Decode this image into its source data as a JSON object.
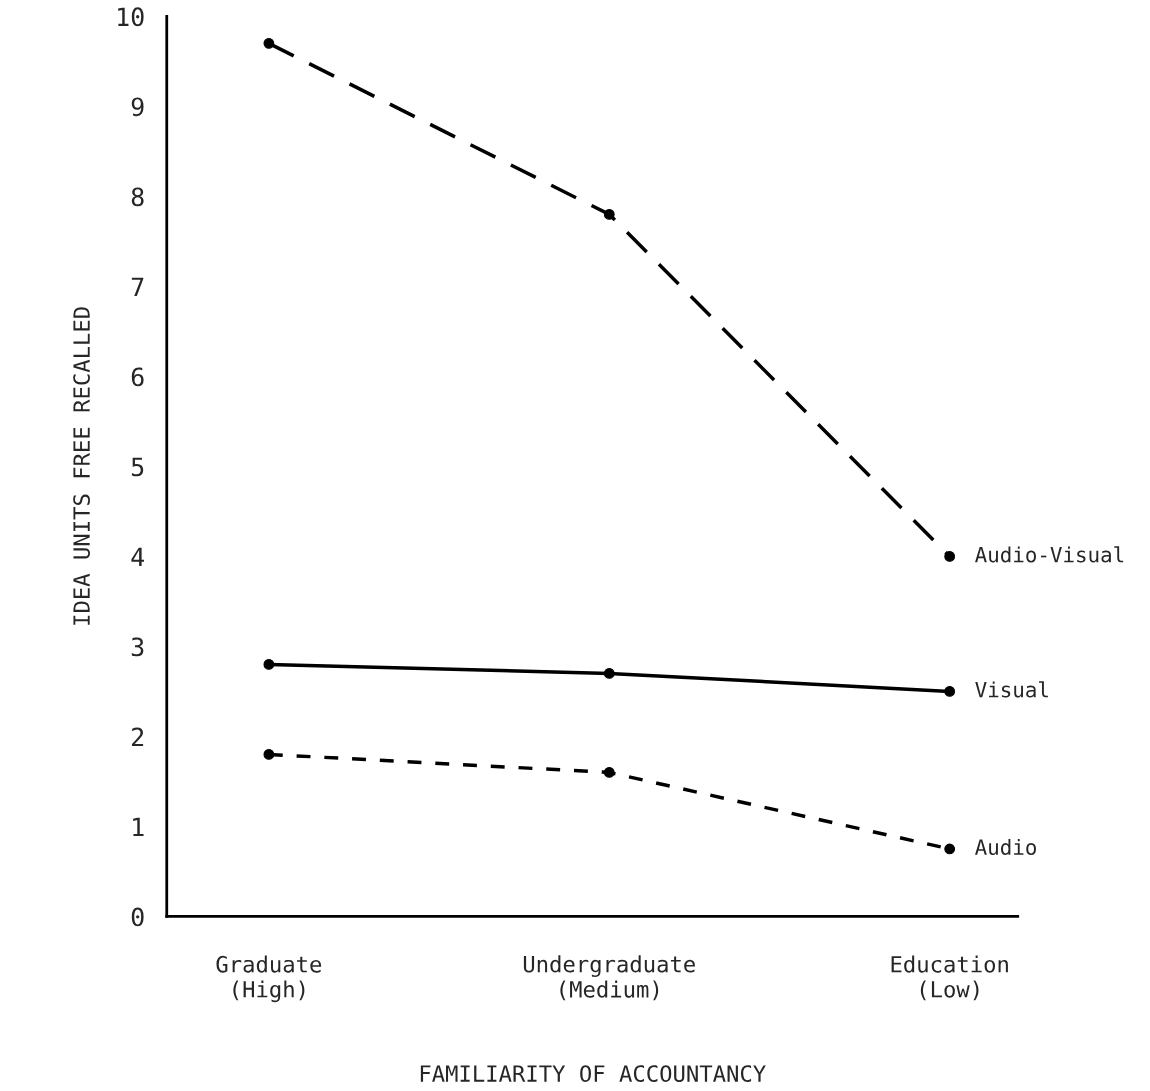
{
  "chart_data": {
    "type": "line",
    "xlabel": "FAMILIARITY OF ACCOUNTANCY",
    "ylabel": "IDEA UNITS FREE RECALLED",
    "categories": [
      "Graduate\n(High)",
      "Undergraduate\n(Medium)",
      "Education\n(Low)"
    ],
    "series": [
      {
        "name": "Audio-Visual",
        "color": "#000000",
        "values": [
          9.7,
          7.8,
          4.0
        ],
        "line_style": "dashed"
      },
      {
        "name": "Visual",
        "color": "#000000",
        "values": [
          2.8,
          2.7,
          2.5
        ],
        "line_style": "solid"
      },
      {
        "name": "Audio",
        "color": "#000000",
        "values": [
          1.8,
          1.6,
          0.75
        ],
        "line_style": "dotted"
      }
    ],
    "ylim": [
      0,
      10
    ],
    "yticks": [
      0,
      1,
      2,
      3,
      4,
      5,
      6,
      7,
      8,
      9,
      10
    ],
    "marker": "circle",
    "grid": false,
    "legend": false
  }
}
